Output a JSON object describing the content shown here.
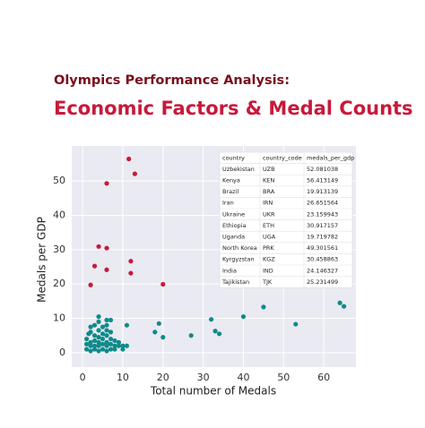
{
  "chart_data": {
    "type": "scatter",
    "title": "Olympics Performance Analysis:",
    "subtitle": "Economic Factors & Medal Counts",
    "xlabel": "Total number of Medals",
    "ylabel": "Medals per GDP",
    "xlim": [
      -2.7,
      68
    ],
    "ylim": [
      -4.2,
      60.2
    ],
    "xticks": [
      0,
      10,
      20,
      30,
      40,
      50,
      60
    ],
    "yticks": [
      0,
      10,
      20,
      30,
      40,
      50
    ],
    "grid": true,
    "series": [
      {
        "color": "#0f8a8a",
        "x": [
          1,
          1,
          1,
          1.5,
          2,
          2,
          2,
          2,
          2,
          3,
          3,
          3,
          3,
          3,
          4,
          4,
          4,
          4,
          4,
          4,
          4,
          5,
          5,
          5,
          5,
          5,
          6,
          6,
          6,
          6,
          6,
          6,
          6,
          7,
          7,
          7,
          7,
          7,
          8,
          8,
          8,
          9,
          9,
          10,
          10,
          11,
          11,
          18,
          19,
          20,
          27,
          32,
          33,
          34,
          40,
          45,
          53,
          64,
          65
        ],
        "values": [
          1,
          2.5,
          4,
          5.5,
          0.5,
          2,
          3,
          6,
          7.5,
          1,
          2,
          3.5,
          5,
          8,
          0.5,
          2,
          3,
          4.5,
          6.5,
          9,
          10.5,
          1,
          2.5,
          4,
          5.5,
          7.5,
          0.5,
          2,
          3,
          5,
          6.5,
          8,
          9.5,
          1,
          2.5,
          4,
          6,
          9.5,
          1,
          2,
          3.5,
          2,
          3,
          1,
          2,
          2,
          8,
          6,
          8.5,
          4.5,
          5,
          9.7,
          6.3,
          5.5,
          10.5,
          13.3,
          8.3,
          14.5,
          13.5
        ]
      }
    ],
    "highlight": {
      "color": "#c8193a",
      "x": [
        13,
        11.5,
        20,
        12,
        12,
        4,
        2,
        6,
        6,
        6,
        3
      ]
    },
    "table": {
      "columns": [
        "country",
        "country_code",
        "medals_per_gdp"
      ],
      "rows": [
        [
          "Uzbekistan",
          "UZB",
          52.081038
        ],
        [
          "Kenya",
          "KEN",
          56.413149
        ],
        [
          "Brazil",
          "BRA",
          19.913139
        ],
        [
          "Iran",
          "IRN",
          26.651564
        ],
        [
          "Ukraine",
          "UKR",
          23.159943
        ],
        [
          "Ethiopia",
          "ETH",
          30.917157
        ],
        [
          "Uganda",
          "UGA",
          19.719782
        ],
        [
          "North Korea",
          "PRK",
          49.301561
        ],
        [
          "Kyrgyzstan",
          "KGZ",
          30.458863
        ],
        [
          "India",
          "IND",
          24.146327
        ],
        [
          "Tajikistan",
          "TJK",
          25.231499
        ]
      ]
    }
  }
}
